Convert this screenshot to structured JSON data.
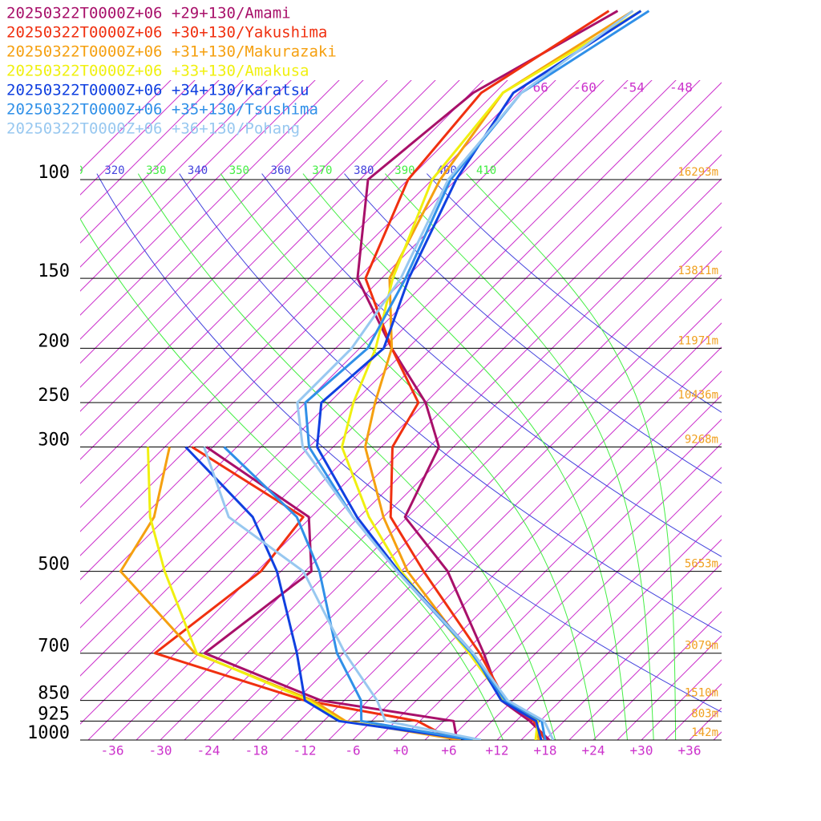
{
  "chart_data": {
    "type": "skewt",
    "log_y": true,
    "skew_deg": 45,
    "ylim": [
      1000,
      100
    ],
    "xlim": [
      -40,
      40
    ],
    "yticks": [
      100,
      150,
      200,
      250,
      300,
      500,
      700,
      850,
      925,
      1000
    ],
    "height_labels": [
      "16293m",
      "13811m",
      "11971m",
      "10436m",
      "9268m",
      "5653m",
      "3079m",
      "1510m",
      "803m",
      "142m"
    ],
    "xticks": [
      -36,
      -30,
      -24,
      -18,
      -12,
      -6,
      {
        "value": 0,
        "label": "+0"
      },
      {
        "value": 6,
        "label": "+6"
      },
      {
        "value": 12,
        "label": "+12"
      },
      {
        "value": 18,
        "label": "+18"
      },
      {
        "value": 24,
        "label": "+24"
      },
      {
        "value": 30,
        "label": "+30"
      },
      {
        "value": 36,
        "label": "+36"
      }
    ],
    "upper_isotherm_labels": [
      -66,
      -60,
      -54,
      -48
    ],
    "isotherms": [
      -111,
      -108,
      -105,
      -102,
      -99,
      -96,
      -93,
      -90,
      -87,
      -84,
      -81,
      -78,
      -75,
      -72,
      -69,
      -66,
      -63,
      -60,
      -57,
      -54,
      -51,
      -48,
      -45,
      -42,
      -39,
      -36,
      -33,
      -30,
      -27,
      -24,
      -21,
      -18,
      -15,
      -12,
      -9,
      -6,
      -3,
      0,
      3,
      6,
      9,
      12,
      15,
      18,
      21,
      24,
      27,
      30,
      33,
      36,
      39
    ],
    "isotherm_color": "#cc33cc",
    "dry_adiabats": [
      320,
      340,
      360,
      380,
      400
    ],
    "dry_adiabat_color": "#4444dd",
    "moist_adiabats": [
      310,
      330,
      350,
      370,
      390,
      410
    ],
    "moist_adiabat_color": "#44ee44",
    "height_color": "#f0a020",
    "pressure_levels": [
      1000,
      925,
      850,
      700,
      500,
      400,
      300,
      250,
      200,
      150,
      100,
      70,
      50
    ],
    "series": [
      {
        "name": "20250322T0000Z+06 +29+130/Amami",
        "color": "#a8106a",
        "temperature": [
          18.5,
          13.7,
          7.6,
          -0.5,
          -15.2,
          -27.3,
          -31.8,
          -39,
          -50,
          -63,
          -74,
          -71.7,
          -63.9
        ],
        "dewpoint": [
          7,
          4.2,
          -14.9,
          -35.3,
          -32.2,
          -39.3,
          -60.8,
          null,
          null,
          null,
          null,
          null,
          null
        ]
      },
      {
        "name": "20250322T0000Z+06 +30+130/Yakushima",
        "color": "#f03010",
        "temperature": [
          18,
          14.2,
          8.1,
          -1,
          -18.2,
          -29.1,
          -37.6,
          -39.9,
          -50,
          -62,
          -69,
          -70.7,
          -65
        ],
        "dewpoint": [
          6.5,
          -0.3,
          -16.9,
          -41.5,
          -38.5,
          -40,
          -62.6,
          null,
          null,
          null,
          null,
          null,
          null
        ]
      },
      {
        "name": "20250322T0000Z+06 +31+130/Makurazaki",
        "color": "#f5a010",
        "temperature": [
          17.2,
          14.5,
          7.9,
          -2.3,
          -20.2,
          -30,
          -41,
          -45.3,
          -50,
          -59,
          -65,
          -68,
          -62
        ],
        "dewpoint": [
          7.5,
          -9.3,
          -15.9,
          -36.5,
          -56,
          -58.6,
          -65.4,
          null,
          null,
          null,
          null,
          null,
          null
        ]
      },
      {
        "name": "20250322T0000Z+06 +33+130/Amakusa",
        "color": "#f0f010",
        "temperature": [
          16.8,
          14.7,
          7.9,
          -2.3,
          -21,
          -31.8,
          -43.9,
          -48,
          -52,
          -58.6,
          -66,
          -68,
          -61
        ],
        "dewpoint": [
          9.5,
          -9.8,
          -16.4,
          -36.3,
          -50.5,
          -59.1,
          -68.1,
          null,
          null,
          null,
          null,
          null,
          null
        ]
      },
      {
        "name": "20250322T0000Z+06 +34+130/Karatsu",
        "color": "#1040e0",
        "temperature": [
          17.5,
          14.5,
          7.6,
          -1.8,
          -21.3,
          -33.3,
          -47,
          -52,
          -51,
          -56.6,
          -63,
          -66.7,
          -61
        ],
        "dewpoint": [
          9,
          -10.1,
          -16.9,
          -23.8,
          -36.5,
          -46.3,
          -63.4,
          null,
          null,
          null,
          null,
          null,
          null
        ]
      },
      {
        "name": "20250322T0000Z+06 +35+130/Tsushima",
        "color": "#3090e8",
        "temperature": [
          18,
          15.2,
          8.1,
          -2,
          -21.5,
          -33.8,
          -48,
          -54,
          -53,
          -57,
          -63.7,
          -65.7,
          -60
        ],
        "dewpoint": [
          9,
          -7.3,
          -9.9,
          -18.8,
          -31.2,
          -40.8,
          -58.6,
          null,
          null,
          null,
          null,
          null,
          null
        ]
      },
      {
        "name": "20250322T0000Z+06 +36+130/Pohang",
        "color": "#98c8f0",
        "temperature": [
          19,
          15.5,
          8.4,
          -1.8,
          -21.5,
          -33.8,
          -48.8,
          -55,
          -55,
          -57.6,
          -64,
          -65.7,
          -62
        ],
        "dewpoint": [
          10,
          -4.3,
          -7.9,
          -17.8,
          -33.2,
          -49.3,
          -61.1,
          null,
          null,
          null,
          null,
          null,
          null
        ]
      }
    ]
  }
}
